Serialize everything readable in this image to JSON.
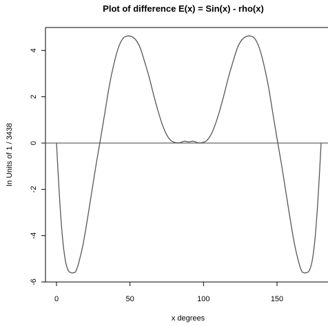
{
  "chart_data": {
    "type": "line",
    "title": "Plot of difference E(x) = Sin(x) - rho(x)",
    "xlabel": "x degrees",
    "ylabel": "In Units of  1 / 3438",
    "xlim": [
      -8,
      182
    ],
    "ylim": [
      -6,
      5
    ],
    "x_ticks": [
      0,
      50,
      100,
      150
    ],
    "y_ticks": [
      -6,
      -4,
      -2,
      0,
      2,
      4
    ],
    "x_tick_labels": [
      "0",
      "50",
      "100",
      "150"
    ],
    "y_tick_labels": [
      "-6",
      "-4",
      "-2",
      "0",
      "2",
      "4"
    ],
    "hline": 0,
    "grid": false,
    "legend": "none",
    "line_color": "#555555",
    "series": [
      {
        "x": [
          0,
          2,
          4,
          6,
          8,
          10,
          11.5,
          13,
          15,
          18,
          21,
          24,
          27,
          30,
          33,
          36,
          39,
          42,
          45,
          48,
          51,
          54,
          57,
          60,
          63,
          66,
          69,
          72,
          75,
          78,
          81,
          84,
          87,
          90,
          93,
          96,
          99,
          102,
          105,
          108,
          111,
          114,
          117,
          120,
          123,
          126,
          129,
          132,
          135,
          138,
          141,
          144,
          147,
          150,
          153,
          156,
          159,
          162,
          165,
          167,
          168.5,
          170,
          172,
          174,
          176,
          178,
          180
        ],
        "y": [
          0,
          -2.29,
          -4.03,
          -5.06,
          -5.5,
          -5.6,
          -5.6,
          -5.55,
          -5.2,
          -4.4,
          -3.3,
          -2.1,
          -0.9,
          0.2,
          1.35,
          2.5,
          3.4,
          4.1,
          4.5,
          4.62,
          4.6,
          4.45,
          4.1,
          3.5,
          2.85,
          2.1,
          1.4,
          0.8,
          0.35,
          0.1,
          0.02,
          0.02,
          0.08,
          0.05,
          0.08,
          0.02,
          0.02,
          0.1,
          0.35,
          0.8,
          1.4,
          2.1,
          2.85,
          3.5,
          4.1,
          4.45,
          4.6,
          4.62,
          4.5,
          4.1,
          3.4,
          2.5,
          1.35,
          0.2,
          -0.9,
          -2.1,
          -3.3,
          -4.4,
          -5.2,
          -5.55,
          -5.6,
          -5.6,
          -5.5,
          -5.06,
          -4.03,
          -2.29,
          0
        ]
      }
    ]
  }
}
